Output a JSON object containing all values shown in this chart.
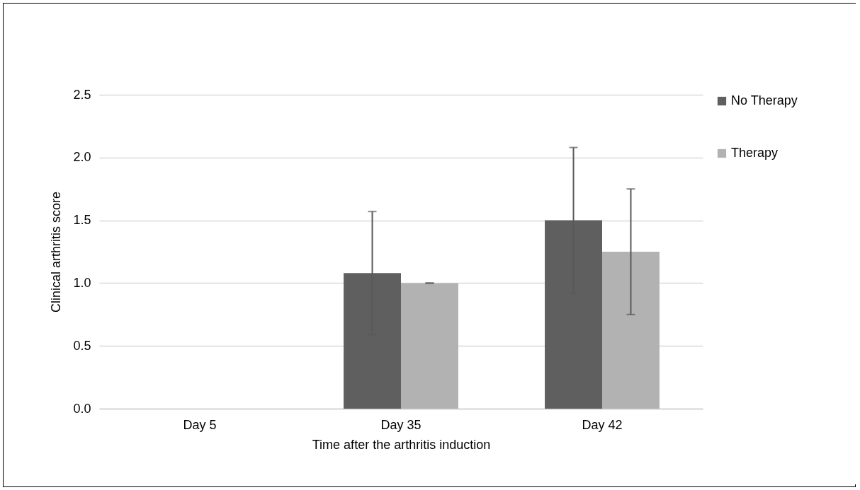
{
  "chart_data": {
    "type": "bar",
    "xlabel": "Time after the arthritis induction",
    "ylabel": "Clinical arthritis score",
    "categories": [
      "Day 5",
      "Day 35",
      "Day 42"
    ],
    "series": [
      {
        "name": "No Therapy",
        "color": "#5f5f5f",
        "values": [
          0,
          1.08,
          1.5
        ],
        "errors": [
          null,
          0.49,
          0.58
        ]
      },
      {
        "name": "Therapy",
        "color": "#b2b2b2",
        "values": [
          0,
          1.0,
          1.25
        ],
        "errors": [
          null,
          0,
          0.5
        ]
      }
    ],
    "ylim": [
      0,
      2.5
    ],
    "yticks": [
      {
        "value": 0,
        "label": "0.0"
      },
      0.5,
      {
        "value": 1,
        "label": "1.0"
      },
      1.5,
      {
        "value": 2,
        "label": "2.0"
      },
      2.5
    ],
    "grid": "y",
    "legend": "right"
  }
}
